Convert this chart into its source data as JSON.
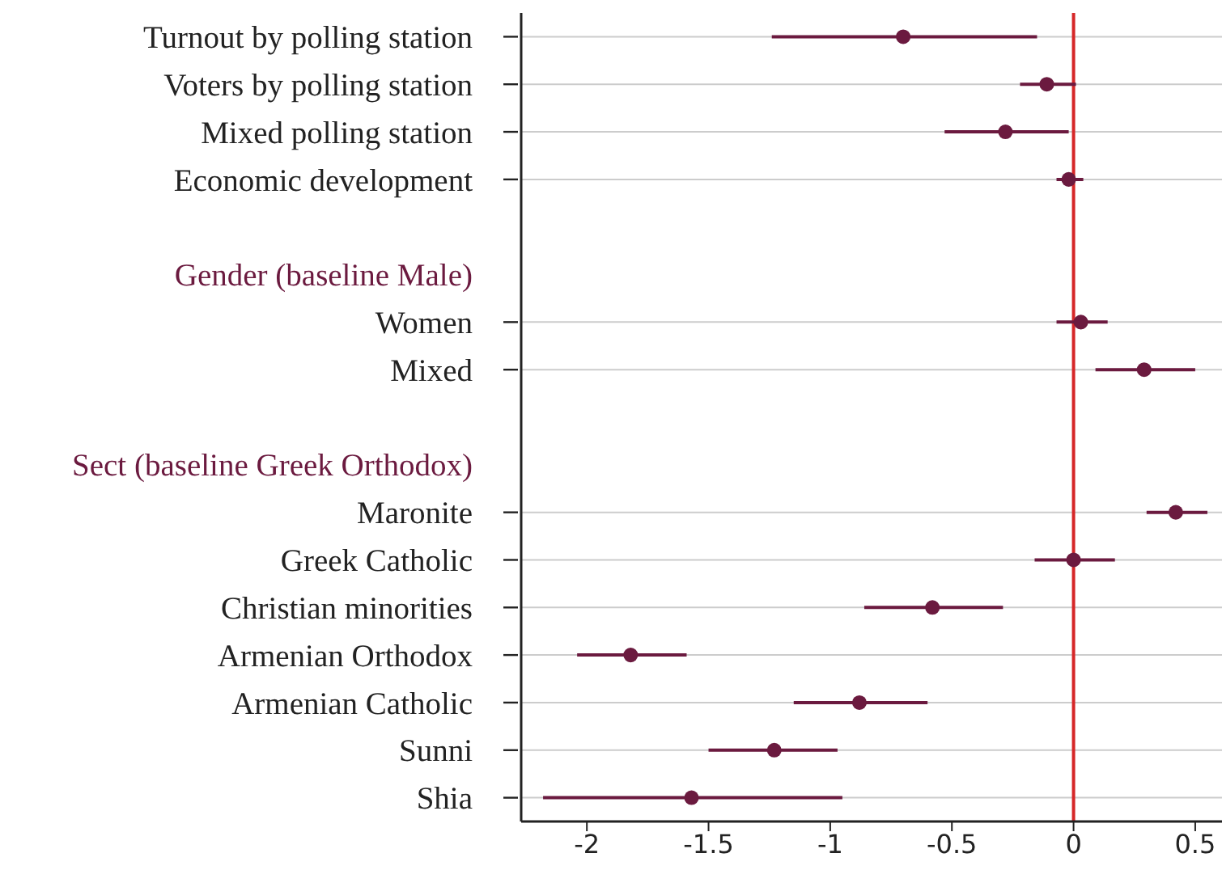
{
  "chart_data": {
    "type": "scatter",
    "orientation": "horizontal",
    "categories": [
      "Turnout by polling station",
      "Voters by polling station",
      "Mixed polling station",
      "Economic development",
      null,
      "Gender (baseline Male)",
      "Women",
      "Mixed",
      null,
      "Sect (baseline Greek Orthodox)",
      "Maronite",
      "Greek Catholic",
      "Christian minorities",
      "Armenian Orthodox",
      "Armenian Catholic",
      "Sunni",
      "Shia"
    ],
    "series": [
      {
        "color": "#6b1a3f",
        "values": [
          -0.7,
          -0.11,
          -0.28,
          -0.02,
          null,
          null,
          0.03,
          0.29,
          null,
          null,
          0.42,
          0.0,
          -0.58,
          -1.82,
          -0.88,
          -1.23,
          -1.57
        ],
        "errors": [
          [
            -1.24,
            -0.15
          ],
          [
            -0.22,
            0.01
          ],
          [
            -0.53,
            -0.02
          ],
          [
            -0.07,
            0.04
          ],
          null,
          null,
          [
            -0.07,
            0.14
          ],
          [
            0.09,
            0.5
          ],
          null,
          null,
          [
            0.3,
            0.55
          ],
          [
            -0.16,
            0.17
          ],
          [
            -0.86,
            -0.29
          ],
          [
            -2.04,
            -1.59
          ],
          [
            -1.15,
            -0.6
          ],
          [
            -1.5,
            -0.97
          ],
          [
            -2.18,
            -0.95
          ]
        ]
      }
    ],
    "xlim": [
      -2.27,
      0.61
    ],
    "xticks": [
      -2,
      -1.5,
      -1,
      -0.5,
      0,
      0.5
    ],
    "grid": "y",
    "marker": "circle",
    "ref_lines": [
      {
        "axis": "x",
        "value": 0,
        "color": "#d62728"
      }
    ]
  }
}
